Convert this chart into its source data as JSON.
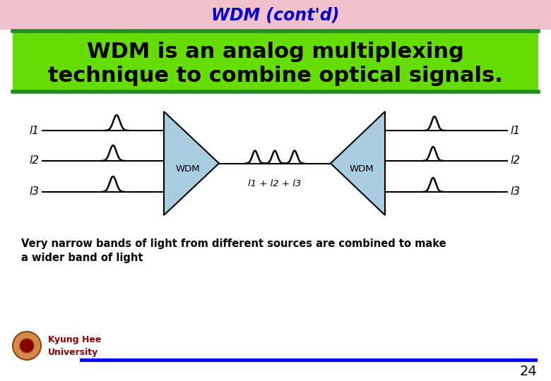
{
  "title": "WDM (cont'd)",
  "title_color": "#0000CC",
  "title_bg": "#F2C2CC",
  "subtitle_line1": "WDM is an analog multiplexing",
  "subtitle_line2": "technique to combine optical signals.",
  "subtitle_bg": "#66DD00",
  "subtitle_border_color": "#228B22",
  "body_bg": "#FFFFFF",
  "description_line1": "Very narrow bands of light from different sources are combined to make",
  "description_line2": "a wider band of light",
  "footer_text_line1": "Kyung Hee",
  "footer_text_line2": "University",
  "page_number": "24",
  "wdm_color": "#A8CCE0",
  "line_color": "#000000",
  "blue_line_color": "#0000EE",
  "label_left": [
    "l1",
    "l2",
    "l3"
  ],
  "label_right": [
    "l1",
    "l2",
    "l3"
  ],
  "wdm_label": "WDM",
  "combined_label": "l1 + l2 + l3"
}
